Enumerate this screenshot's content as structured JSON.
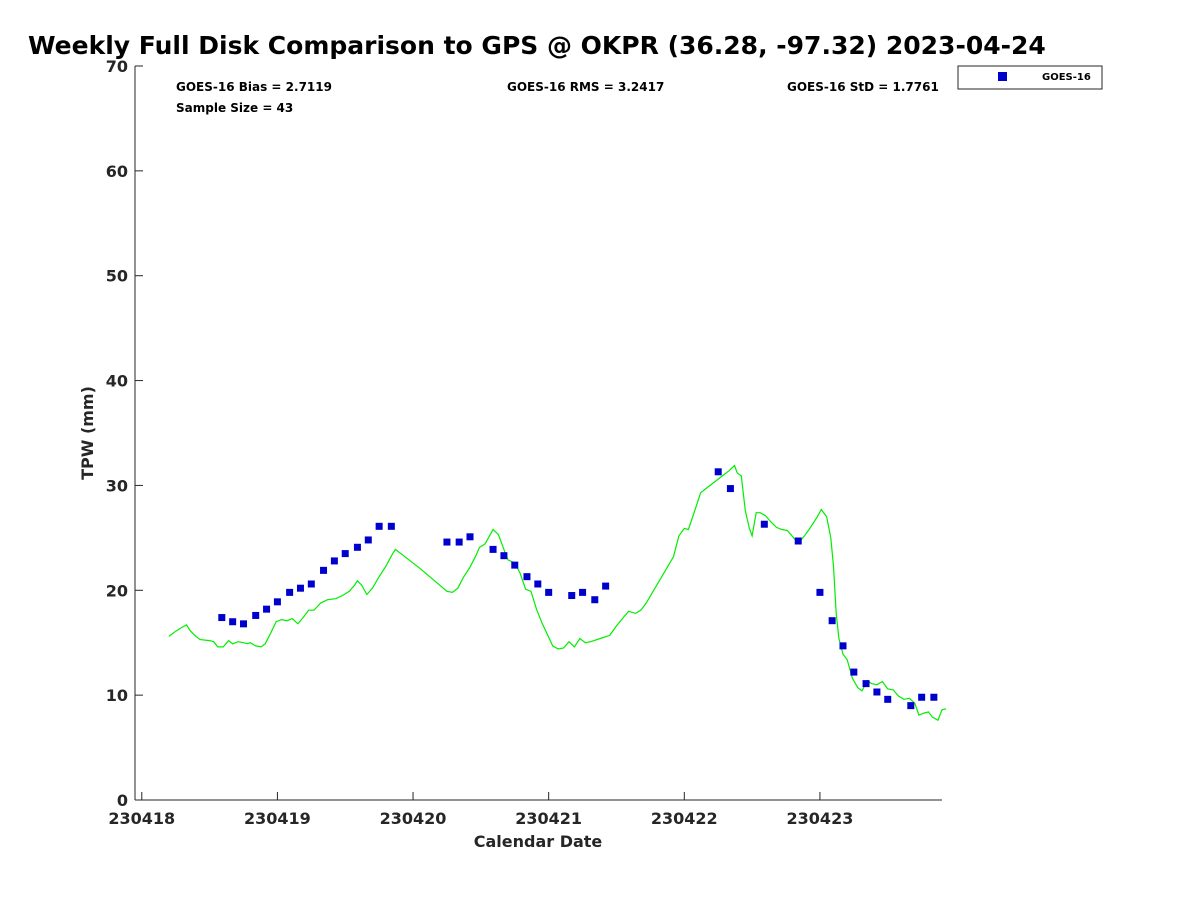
{
  "chart_data": {
    "type": "scatter",
    "title": "Weekly Full Disk Comparison to GPS @ OKPR (36.28, -97.32) 2023-04-24",
    "xlabel": "Calendar Date",
    "ylabel": "TPW (mm)",
    "xlim": [
      230417.95,
      230423.9
    ],
    "ylim": [
      0,
      70
    ],
    "yticks": [
      0,
      10,
      20,
      30,
      40,
      50,
      60,
      70
    ],
    "xticks": [
      {
        "value": 230418,
        "label": "230418"
      },
      {
        "value": 230419,
        "label": "230419"
      },
      {
        "value": 230420,
        "label": "230420"
      },
      {
        "value": 230421,
        "label": "230421"
      },
      {
        "value": 230422,
        "label": "230422"
      },
      {
        "value": 230423,
        "label": "230423"
      }
    ],
    "stats": {
      "bias": "GOES-16 Bias = 2.7119",
      "rms": "GOES-16 RMS = 3.2417",
      "std": "GOES-16 StD = 1.7761",
      "sample": "Sample Size = 43"
    },
    "legend": [
      {
        "name": "GOES-16",
        "color": "#0000cc",
        "marker": "square"
      }
    ],
    "series": [
      {
        "name": "GOES-16",
        "color": "#0000cc",
        "marker": "square",
        "points": [
          [
            230418.59,
            17.4
          ],
          [
            230418.67,
            17.0
          ],
          [
            230418.75,
            16.8
          ],
          [
            230418.84,
            17.6
          ],
          [
            230418.92,
            18.2
          ],
          [
            230419.0,
            18.9
          ],
          [
            230419.09,
            19.8
          ],
          [
            230419.17,
            20.2
          ],
          [
            230419.25,
            20.6
          ],
          [
            230419.34,
            21.9
          ],
          [
            230419.42,
            22.8
          ],
          [
            230419.5,
            23.5
          ],
          [
            230419.59,
            24.1
          ],
          [
            230419.67,
            24.8
          ],
          [
            230419.75,
            26.1
          ],
          [
            230419.84,
            26.1
          ],
          [
            230420.25,
            24.6
          ],
          [
            230420.34,
            24.6
          ],
          [
            230420.42,
            25.1
          ],
          [
            230420.59,
            23.9
          ],
          [
            230420.67,
            23.3
          ],
          [
            230420.75,
            22.4
          ],
          [
            230420.84,
            21.3
          ],
          [
            230420.92,
            20.6
          ],
          [
            230421.0,
            19.8
          ],
          [
            230421.17,
            19.5
          ],
          [
            230421.25,
            19.8
          ],
          [
            230421.34,
            19.1
          ],
          [
            230421.42,
            20.4
          ],
          [
            230422.25,
            31.3
          ],
          [
            230422.34,
            29.7
          ],
          [
            230422.59,
            26.3
          ],
          [
            230422.84,
            24.7
          ],
          [
            230423.0,
            19.8
          ],
          [
            230423.09,
            17.1
          ],
          [
            230423.17,
            14.7
          ],
          [
            230423.25,
            12.2
          ],
          [
            230423.34,
            11.1
          ],
          [
            230423.42,
            10.3
          ],
          [
            230423.5,
            9.6
          ],
          [
            230423.67,
            9.0
          ],
          [
            230423.75,
            9.8
          ],
          [
            230423.84,
            9.8
          ]
        ]
      },
      {
        "name": "GPS",
        "color": "#00ee00",
        "marker": "line",
        "points": [
          [
            230418.2,
            15.6
          ],
          [
            230418.25,
            16.1
          ],
          [
            230418.3,
            16.5
          ],
          [
            230418.33,
            16.7
          ],
          [
            230418.36,
            16.1
          ],
          [
            230418.4,
            15.6
          ],
          [
            230418.43,
            15.3
          ],
          [
            230418.5,
            15.2
          ],
          [
            230418.53,
            15.1
          ],
          [
            230418.56,
            14.6
          ],
          [
            230418.6,
            14.6
          ],
          [
            230418.64,
            15.2
          ],
          [
            230418.67,
            14.9
          ],
          [
            230418.71,
            15.1
          ],
          [
            230418.75,
            15.0
          ],
          [
            230418.78,
            14.9
          ],
          [
            230418.8,
            15.0
          ],
          [
            230418.84,
            14.7
          ],
          [
            230418.88,
            14.6
          ],
          [
            230418.91,
            14.9
          ],
          [
            230418.95,
            15.9
          ],
          [
            230418.99,
            17.0
          ],
          [
            230419.03,
            17.2
          ],
          [
            230419.07,
            17.1
          ],
          [
            230419.11,
            17.3
          ],
          [
            230419.15,
            16.8
          ],
          [
            230419.19,
            17.4
          ],
          [
            230419.23,
            18.1
          ],
          [
            230419.27,
            18.1
          ],
          [
            230419.32,
            18.8
          ],
          [
            230419.37,
            19.1
          ],
          [
            230419.43,
            19.2
          ],
          [
            230419.48,
            19.5
          ],
          [
            230419.53,
            19.9
          ],
          [
            230419.57,
            20.5
          ],
          [
            230419.59,
            20.9
          ],
          [
            230419.62,
            20.5
          ],
          [
            230419.66,
            19.6
          ],
          [
            230419.7,
            20.2
          ],
          [
            230419.75,
            21.3
          ],
          [
            230419.8,
            22.3
          ],
          [
            230419.85,
            23.5
          ],
          [
            230419.87,
            23.9
          ],
          [
            230419.95,
            23.1
          ],
          [
            230420.05,
            22.1
          ],
          [
            230420.15,
            21.0
          ],
          [
            230420.25,
            19.9
          ],
          [
            230420.29,
            19.8
          ],
          [
            230420.33,
            20.2
          ],
          [
            230420.37,
            21.2
          ],
          [
            230420.42,
            22.2
          ],
          [
            230420.46,
            23.2
          ],
          [
            230420.49,
            24.1
          ],
          [
            230420.53,
            24.4
          ],
          [
            230420.56,
            25.1
          ],
          [
            230420.59,
            25.8
          ],
          [
            230420.63,
            25.3
          ],
          [
            230420.67,
            23.9
          ],
          [
            230420.7,
            22.9
          ],
          [
            230420.75,
            22.6
          ],
          [
            230420.79,
            21.6
          ],
          [
            230420.83,
            20.1
          ],
          [
            230420.87,
            19.9
          ],
          [
            230420.91,
            18.2
          ],
          [
            230420.95,
            16.9
          ],
          [
            230420.99,
            15.8
          ],
          [
            230421.03,
            14.7
          ],
          [
            230421.07,
            14.4
          ],
          [
            230421.11,
            14.5
          ],
          [
            230421.15,
            15.1
          ],
          [
            230421.19,
            14.6
          ],
          [
            230421.23,
            15.4
          ],
          [
            230421.27,
            15.0
          ],
          [
            230421.31,
            15.1
          ],
          [
            230421.38,
            15.4
          ],
          [
            230421.45,
            15.7
          ],
          [
            230421.5,
            16.6
          ],
          [
            230421.55,
            17.4
          ],
          [
            230421.59,
            18.0
          ],
          [
            230421.64,
            17.8
          ],
          [
            230421.68,
            18.1
          ],
          [
            230421.72,
            18.8
          ],
          [
            230421.77,
            19.9
          ],
          [
            230421.82,
            21.0
          ],
          [
            230421.87,
            22.1
          ],
          [
            230421.92,
            23.2
          ],
          [
            230421.96,
            25.2
          ],
          [
            230422.0,
            25.9
          ],
          [
            230422.03,
            25.8
          ],
          [
            230422.09,
            28.1
          ],
          [
            230422.12,
            29.3
          ],
          [
            230422.15,
            29.6
          ],
          [
            230422.2,
            30.1
          ],
          [
            230422.27,
            30.8
          ],
          [
            230422.33,
            31.4
          ],
          [
            230422.37,
            31.9
          ],
          [
            230422.39,
            31.2
          ],
          [
            230422.42,
            30.9
          ],
          [
            230422.45,
            27.6
          ],
          [
            230422.48,
            25.9
          ],
          [
            230422.5,
            25.2
          ],
          [
            230422.53,
            27.4
          ],
          [
            230422.56,
            27.4
          ],
          [
            230422.6,
            27.1
          ],
          [
            230422.64,
            26.5
          ],
          [
            230422.68,
            26.0
          ],
          [
            230422.72,
            25.8
          ],
          [
            230422.76,
            25.7
          ],
          [
            230422.8,
            25.1
          ],
          [
            230422.84,
            24.5
          ],
          [
            230422.88,
            25.1
          ],
          [
            230422.92,
            25.8
          ],
          [
            230422.95,
            26.4
          ],
          [
            230422.98,
            27.0
          ],
          [
            230423.01,
            27.7
          ],
          [
            230423.05,
            27.0
          ],
          [
            230423.08,
            25.0
          ],
          [
            230423.1,
            22.3
          ],
          [
            230423.12,
            17.8
          ],
          [
            230423.14,
            15.4
          ],
          [
            230423.17,
            13.9
          ],
          [
            230423.2,
            13.4
          ],
          [
            230423.24,
            11.6
          ],
          [
            230423.28,
            10.7
          ],
          [
            230423.31,
            10.4
          ],
          [
            230423.35,
            11.4
          ],
          [
            230423.38,
            11.1
          ],
          [
            230423.42,
            11.0
          ],
          [
            230423.46,
            11.3
          ],
          [
            230423.5,
            10.6
          ],
          [
            230423.54,
            10.5
          ],
          [
            230423.58,
            9.9
          ],
          [
            230423.62,
            9.6
          ],
          [
            230423.66,
            9.7
          ],
          [
            230423.7,
            9.2
          ],
          [
            230423.73,
            8.1
          ],
          [
            230423.77,
            8.3
          ],
          [
            230423.8,
            8.4
          ],
          [
            230423.83,
            7.9
          ],
          [
            230423.87,
            7.6
          ],
          [
            230423.9,
            8.6
          ],
          [
            230423.93,
            8.7
          ]
        ]
      }
    ]
  }
}
